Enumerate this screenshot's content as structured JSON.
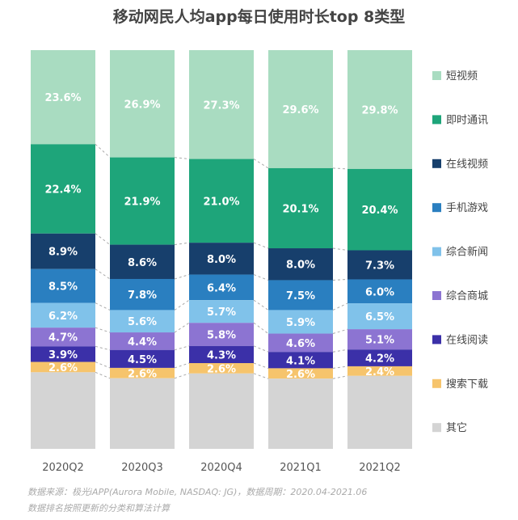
{
  "chart_data": {
    "type": "bar",
    "stacked": true,
    "title": "移动网民人均app每日使用时长top 8类型",
    "categories": [
      "2020Q2",
      "2020Q3",
      "2020Q4",
      "2021Q1",
      "2021Q2"
    ],
    "legend_position": "right",
    "series": [
      {
        "name": "短视频",
        "color": "#a9dcc1",
        "values": [
          23.6,
          26.9,
          27.3,
          29.6,
          29.8
        ]
      },
      {
        "name": "即时通讯",
        "color": "#1ea57a",
        "values": [
          22.4,
          21.9,
          21.0,
          20.1,
          20.4
        ]
      },
      {
        "name": "在线视频",
        "color": "#173f6c",
        "values": [
          8.9,
          8.6,
          8.0,
          8.0,
          7.3
        ]
      },
      {
        "name": "手机游戏",
        "color": "#2a7fc0",
        "values": [
          8.5,
          7.8,
          6.4,
          7.5,
          6.0
        ]
      },
      {
        "name": "综合新闻",
        "color": "#80c2ea",
        "values": [
          6.2,
          5.6,
          5.7,
          5.9,
          6.5
        ]
      },
      {
        "name": "综合商城",
        "color": "#8c74d2",
        "values": [
          4.7,
          4.4,
          5.8,
          4.6,
          5.1
        ]
      },
      {
        "name": "在线阅读",
        "color": "#3b30a8",
        "values": [
          3.9,
          4.5,
          4.3,
          4.1,
          4.2
        ]
      },
      {
        "name": "搜索下载",
        "color": "#f6c46c",
        "values": [
          2.6,
          2.6,
          2.6,
          2.6,
          2.4
        ]
      },
      {
        "name": "其它",
        "color": "#d4d4d4",
        "values": [
          null,
          null,
          null,
          null,
          null
        ]
      }
    ]
  },
  "footer": {
    "source": "数据来源：极光iAPP(Aurora Mobile, NASDAQ: JG)，数据周期：2020.04-2021.06",
    "note": "数据排名按照更新的分类和算法计算"
  }
}
